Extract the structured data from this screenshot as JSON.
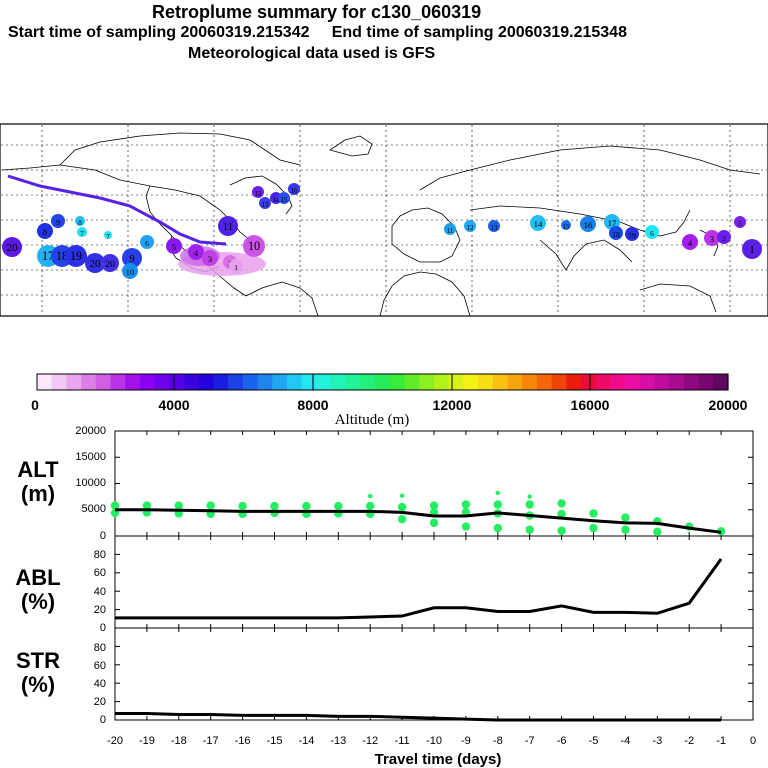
{
  "header": {
    "title": "Retroplume summary for c130_060319",
    "line2": "Start time of sampling 20060319.215342     End time of sampling 20060319.215348",
    "line3": "Meteorological data used is GFS"
  },
  "colorbar": {
    "title": "Altitude (m)",
    "ticks": [
      "0",
      "4000",
      "8000",
      "12000",
      "16000",
      "20000"
    ],
    "colors": [
      "#fbe6fb",
      "#f3c8f5",
      "#e9a6ee",
      "#dd80e6",
      "#cf5ee3",
      "#bb33e8",
      "#a312ec",
      "#8a00f2",
      "#7000ee",
      "#5500e8",
      "#3a00e0",
      "#2400dc",
      "#1a1ee0",
      "#1a40e6",
      "#1d62ea",
      "#2084ee",
      "#22a6f2",
      "#22c8f4",
      "#22e6f2",
      "#22f2dc",
      "#22f2b8",
      "#22f29a",
      "#22f07a",
      "#26ec5a",
      "#3aea38",
      "#62ec28",
      "#8cee20",
      "#b2f01a",
      "#d6f216",
      "#f2f214",
      "#f6de12",
      "#f8c010",
      "#f8a40e",
      "#f8860c",
      "#f4660a",
      "#f04408",
      "#ee1c0c",
      "#ec0c3a",
      "#ee0a66",
      "#f00a8c",
      "#ec0ca6",
      "#d80ca6",
      "#c00c9e",
      "#a80a92",
      "#900880",
      "#780670",
      "#600860"
    ]
  },
  "map": {
    "markers": [
      {
        "label": "20",
        "color": "#5a18e0"
      },
      {
        "label": "9",
        "color": "#2244e6"
      },
      {
        "label": "8",
        "color": "#22c0f2"
      },
      {
        "label": "7",
        "color": "#22e0f0"
      },
      {
        "label": "7",
        "color": "#22e6f2"
      },
      {
        "label": "6",
        "color": "#22a0f2"
      },
      {
        "label": "5",
        "color": "#8a18f0"
      },
      {
        "label": "4",
        "color": "#a020f0"
      },
      {
        "label": "3",
        "color": "#c040e8"
      },
      {
        "label": "2",
        "color": "#d870e6"
      },
      {
        "label": "1",
        "color": "#e6a0ee"
      },
      {
        "label": "10",
        "color": "#cc55e8"
      },
      {
        "label": "11",
        "color": "#5022e6"
      },
      {
        "label": "12",
        "color": "#6a20ea"
      },
      {
        "label": "13",
        "color": "#3a40e6"
      },
      {
        "label": "14",
        "color": "#4a22e6"
      },
      {
        "label": "15",
        "color": "#2a50e8"
      },
      {
        "label": "16",
        "color": "#3a3ae6"
      },
      {
        "label": "17",
        "color": "#22b0f2"
      },
      {
        "label": "18",
        "color": "#2244e6"
      },
      {
        "label": "19",
        "color": "#2a30e6"
      },
      {
        "label": "20",
        "color": "#3030e6"
      },
      {
        "label": "20",
        "color": "#4030e6"
      },
      {
        "label": "9",
        "color": "#2a40e6"
      },
      {
        "label": "8",
        "color": "#2230e4"
      },
      {
        "label": "10",
        "color": "#1a90ee"
      },
      {
        "label": "11",
        "color": "#1aa0f0"
      },
      {
        "label": "12",
        "color": "#22a8f2"
      },
      {
        "label": "13",
        "color": "#1a60e8"
      },
      {
        "label": "14",
        "color": "#22c0f2"
      },
      {
        "label": "15",
        "color": "#1a70ea"
      },
      {
        "label": "16",
        "color": "#1a80ec"
      },
      {
        "label": "17",
        "color": "#22b8f2"
      },
      {
        "label": "18",
        "color": "#1a4ae6"
      },
      {
        "label": "19",
        "color": "#2a30e4"
      },
      {
        "label": "6",
        "color": "#22e6f2"
      },
      {
        "label": "5",
        "color": "#7a20ea"
      },
      {
        "label": "4",
        "color": "#a020f0"
      },
      {
        "label": "3",
        "color": "#bb33e8"
      },
      {
        "label": "2",
        "color": "#6a20ea"
      },
      {
        "label": "1",
        "color": "#5a20e6"
      }
    ]
  },
  "panels": [
    {
      "label_top": "ALT",
      "label_bottom": "(m)",
      "ymax": 20000,
      "yticks": [
        "20000",
        "15000",
        "10000",
        "5000",
        "0"
      ]
    },
    {
      "label_top": "ABL",
      "label_bottom": "(%)",
      "ymax": 100,
      "yticks": [
        "80",
        "60",
        "40",
        "20",
        "0"
      ]
    },
    {
      "label_top": "STR",
      "label_bottom": "(%)",
      "ymax": 100,
      "yticks": [
        "80",
        "60",
        "40",
        "20",
        "0"
      ]
    }
  ],
  "xaxis": {
    "title": "Travel time (days)",
    "xmin": -20,
    "xmax": 0,
    "ticks": [
      "-20",
      "-19",
      "-18",
      "-17",
      "-16",
      "-15",
      "-14",
      "-13",
      "-12",
      "-11",
      "-10",
      "-9",
      "-8",
      "-7",
      "-6",
      "-5",
      "-4",
      "-3",
      "-2",
      "-1",
      "0"
    ]
  },
  "chart_data": {
    "type": "line",
    "title": "Retroplume summary for c130_060319",
    "xlabel": "Travel time (days)",
    "x": [
      -20,
      -19,
      -18,
      -17,
      -16,
      -15,
      -14,
      -13,
      -12,
      -11,
      -10,
      -9,
      -8,
      -7,
      -6,
      -5,
      -4,
      -3,
      -2,
      -1
    ],
    "series": [
      {
        "name": "ALT (m)",
        "values": [
          5000,
          5000,
          4900,
          4800,
          4700,
          4700,
          4700,
          4700,
          4700,
          4500,
          3800,
          3800,
          4400,
          3900,
          3400,
          2900,
          2500,
          2400,
          1500,
          700
        ]
      },
      {
        "name": "ABL (%)",
        "values": [
          11,
          11,
          11,
          11,
          11,
          11,
          11,
          11,
          12,
          13,
          22,
          22,
          18,
          18,
          24,
          17,
          17,
          16,
          27,
          75
        ]
      },
      {
        "name": "STR (%)",
        "values": [
          7,
          7,
          6,
          6,
          5,
          5,
          5,
          4,
          4,
          3,
          2,
          1,
          0,
          0,
          0,
          0,
          0,
          0,
          0,
          0
        ]
      }
    ],
    "alt_scatter": {
      "x": [
        -20,
        -20,
        -19,
        -19,
        -18,
        -18,
        -17,
        -17,
        -16,
        -16,
        -15,
        -15,
        -14,
        -14,
        -13,
        -13,
        -12,
        -12,
        -12,
        -11,
        -11,
        -11,
        -10,
        -10,
        -10,
        -9,
        -9,
        -9,
        -8,
        -8,
        -8,
        -8,
        -7,
        -7,
        -7,
        -7,
        -6,
        -6,
        -6,
        -5,
        -5,
        -4,
        -4,
        -3,
        -3,
        -2,
        -1
      ],
      "y": [
        5800,
        4400,
        5800,
        4500,
        5800,
        4300,
        5800,
        4200,
        5700,
        4200,
        5700,
        4400,
        5700,
        4200,
        5700,
        4300,
        7600,
        5700,
        4200,
        7700,
        5500,
        3200,
        5800,
        4500,
        2500,
        6000,
        4500,
        1800,
        8200,
        6000,
        4300,
        1500,
        7500,
        6000,
        3900,
        1200,
        6200,
        4200,
        1000,
        4300,
        1500,
        3500,
        1200,
        2800,
        800,
        1800,
        900
      ],
      "color": "#22ee60"
    }
  }
}
